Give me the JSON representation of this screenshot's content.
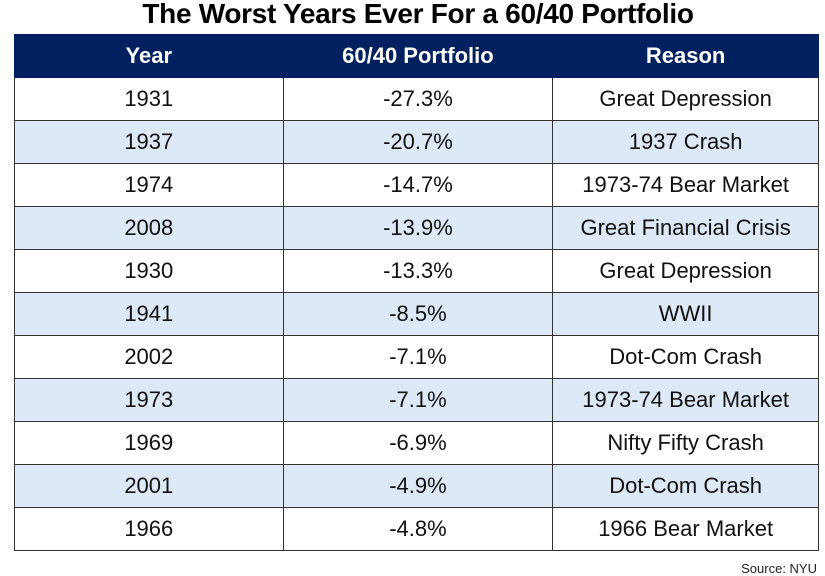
{
  "chart_data": {
    "type": "table",
    "title": "The Worst Years Ever For a 60/40 Portfolio",
    "columns": [
      "Year",
      "60/40 Portfolio",
      "Reason"
    ],
    "rows": [
      [
        "1931",
        "-27.3%",
        "Great Depression"
      ],
      [
        "1937",
        "-20.7%",
        "1937 Crash"
      ],
      [
        "1974",
        "-14.7%",
        "1973-74 Bear Market"
      ],
      [
        "2008",
        "-13.9%",
        "Great Financial Crisis"
      ],
      [
        "1930",
        "-13.3%",
        "Great Depression"
      ],
      [
        "1941",
        "-8.5%",
        "WWII"
      ],
      [
        "2002",
        "-7.1%",
        "Dot-Com Crash"
      ],
      [
        "1973",
        "-7.1%",
        "1973-74 Bear Market"
      ],
      [
        "1969",
        "-6.9%",
        "Nifty Fifty Crash"
      ],
      [
        "2001",
        "-4.9%",
        "Dot-Com Crash"
      ],
      [
        "1966",
        "-4.8%",
        "1966 Bear Market"
      ]
    ],
    "source": "Source: NYU",
    "colors": {
      "header_bg": "#002060",
      "header_text": "#ffffff",
      "alt_row_bg": "#dde9f6"
    }
  }
}
